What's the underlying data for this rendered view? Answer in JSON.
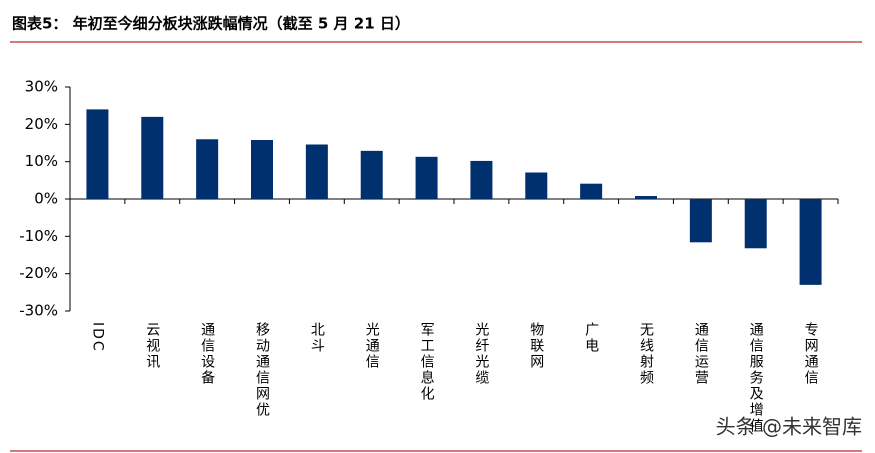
{
  "chart_data": {
    "type": "bar",
    "title": "图表5：  年初至今细分板块涨跌幅情况（截至 5 月 21 日）",
    "watermark": "头条 @未来智库",
    "categories": [
      "IDC",
      "云视讯",
      "通信设备",
      "移动通信网优",
      "北斗",
      "光通信",
      "军工信息化",
      "光纤光缆",
      "物联网",
      "广电",
      "无线射频",
      "通信运营",
      "通信服务及增值",
      "专网通信"
    ],
    "values": [
      24,
      22,
      16,
      15.8,
      14.6,
      12.9,
      11.3,
      10.2,
      7.1,
      4.1,
      0.8,
      -11.6,
      -13.2,
      -23
    ],
    "color": "#00306e",
    "ylim": [
      -30,
      30
    ],
    "yticks": [
      {
        "value": -30,
        "label": "-30%"
      },
      {
        "value": -20,
        "label": "-20%"
      },
      {
        "value": -10,
        "label": "-10%"
      },
      {
        "value": 0,
        "label": "0%"
      },
      {
        "value": 10,
        "label": "10%"
      },
      {
        "value": 20,
        "label": "20%"
      },
      {
        "value": 30,
        "label": "30%"
      }
    ],
    "grid": false
  }
}
